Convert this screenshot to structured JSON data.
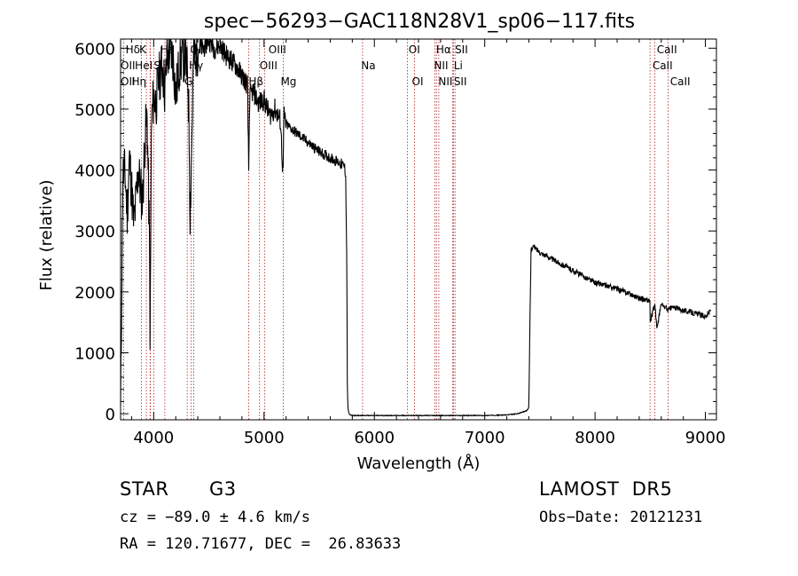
{
  "chart_data": {
    "type": "line",
    "title": "spec−56293−GAC118N28V1_sp06−117.fits",
    "xlabel": "Wavelength (Å)",
    "ylabel": "Flux (relative)",
    "xlim": [
      3700,
      9100
    ],
    "ylim": [
      -100,
      6150
    ],
    "x_ticks": [
      4000,
      5000,
      6000,
      7000,
      8000,
      9000
    ],
    "x_tick_labels": [
      "4000",
      "5000",
      "6000",
      "7000",
      "8000",
      "9000"
    ],
    "y_ticks": [
      0,
      1000,
      2000,
      3000,
      4000,
      5000,
      6000
    ],
    "y_tick_labels": [
      "0",
      "1000",
      "2000",
      "3000",
      "4000",
      "5000",
      "6000"
    ],
    "grid": false,
    "line_color": "#000000",
    "marker_color": "#b22222",
    "series": [
      {
        "x": [
          3700,
          3720,
          3740,
          3760,
          3780,
          3800,
          3820,
          3840,
          3860,
          3880,
          3900,
          3920,
          3940,
          3960,
          3968,
          3980,
          4000,
          4020,
          4040,
          4060,
          4080,
          4101,
          4120,
          4150,
          4180,
          4200,
          4230,
          4260,
          4290,
          4310,
          4320,
          4330,
          4340,
          4360,
          4400,
          4450,
          4500,
          4550,
          4600,
          4650,
          4700,
          4750,
          4800,
          4850,
          4861,
          4870,
          4900,
          4950,
          5000,
          5050,
          5100,
          5150,
          5172,
          5180,
          5200,
          5300,
          5400,
          5500,
          5600,
          5650,
          5700,
          5730,
          5740,
          5750,
          5755,
          5760,
          5770,
          5780,
          5800,
          5900,
          6000,
          6500,
          7000,
          7200,
          7300,
          7380,
          7400,
          7410,
          7420,
          7440,
          7500,
          7600,
          7700,
          7800,
          7900,
          8000,
          8100,
          8200,
          8300,
          8400,
          8498,
          8500,
          8542,
          8560,
          8600,
          8662,
          8700,
          8800,
          8900,
          9000,
          9050
        ],
        "y": [
          0,
          3900,
          3950,
          3300,
          4200,
          3700,
          3100,
          3500,
          4000,
          3700,
          3500,
          4500,
          4900,
          3000,
          1200,
          4800,
          5200,
          5100,
          5400,
          5600,
          5700,
          5300,
          5800,
          6000,
          5800,
          5200,
          5700,
          5900,
          5800,
          5500,
          4800,
          3300,
          4000,
          5800,
          6000,
          6000,
          6150,
          6000,
          6050,
          5900,
          5800,
          5700,
          5550,
          5400,
          4000,
          5200,
          5300,
          5100,
          5150,
          4900,
          5000,
          4800,
          3900,
          4900,
          4750,
          4600,
          4450,
          4300,
          4200,
          4150,
          4100,
          4050,
          3900,
          2500,
          500,
          100,
          0,
          -20,
          -30,
          -30,
          -30,
          -30,
          -30,
          -20,
          0,
          50,
          100,
          1500,
          2700,
          2750,
          2650,
          2550,
          2450,
          2350,
          2250,
          2150,
          2100,
          2050,
          1980,
          1900,
          1850,
          1500,
          1800,
          1400,
          1800,
          1700,
          1750,
          1700,
          1650,
          1600,
          1700
        ]
      }
    ],
    "lines": [
      {
        "name": "Hδ",
        "x": 4101
      },
      {
        "name": "K",
        "x": 3934
      },
      {
        "name": "H",
        "x": 3968
      },
      {
        "name": "Hε",
        "x": 3970
      },
      {
        "name": "OII",
        "x": 3727
      },
      {
        "name": "HeI",
        "x": 3889
      },
      {
        "name": "S",
        "x": 4000
      },
      {
        "name": "OIII",
        "x": 4363
      },
      {
        "name": "Hγ",
        "x": 4340
      },
      {
        "name": "G",
        "x": 4304
      },
      {
        "name": "OIII",
        "x": 4959
      },
      {
        "name": "OIII",
        "x": 5007
      },
      {
        "name": "Hβ",
        "x": 4861
      },
      {
        "name": "Mg",
        "x": 5175
      },
      {
        "name": "Na",
        "x": 5893
      },
      {
        "name": "OI",
        "x": 6300
      },
      {
        "name": "OI",
        "x": 6364
      },
      {
        "name": "Hα",
        "x": 6563
      },
      {
        "name": "NII",
        "x": 6548
      },
      {
        "name": "NII",
        "x": 6584
      },
      {
        "name": "SII",
        "x": 6717
      },
      {
        "name": "SII",
        "x": 6731
      },
      {
        "name": "Li",
        "x": 6708
      },
      {
        "name": "CaII",
        "x": 8498
      },
      {
        "name": "CaII",
        "x": 8542
      },
      {
        "name": "CaII",
        "x": 8662
      }
    ],
    "line_labels": [
      {
        "text": "Hδ",
        "x": 3745,
        "row": 0
      },
      {
        "text": "K",
        "x": 3870,
        "row": 0
      },
      {
        "text": "Hε",
        "x": 4060,
        "row": 0
      },
      {
        "text": "OIII",
        "x": 4330,
        "row": 0
      },
      {
        "text": "OIII",
        "x": 5040,
        "row": 0
      },
      {
        "text": "OI",
        "x": 6310,
        "row": 0
      },
      {
        "text": "Hα",
        "x": 6560,
        "row": 0
      },
      {
        "text": "SII",
        "x": 6730,
        "row": 0
      },
      {
        "text": "CaII",
        "x": 8560,
        "row": 0
      },
      {
        "text": "OII",
        "x": 3700,
        "row": 1
      },
      {
        "text": "HeI",
        "x": 3830,
        "row": 1
      },
      {
        "text": "S",
        "x": 4000,
        "row": 1
      },
      {
        "text": "Hγ",
        "x": 4320,
        "row": 1
      },
      {
        "text": "OIII",
        "x": 4960,
        "row": 1
      },
      {
        "text": "Na",
        "x": 5880,
        "row": 1
      },
      {
        "text": "NII",
        "x": 6540,
        "row": 1
      },
      {
        "text": "Li",
        "x": 6720,
        "row": 1
      },
      {
        "text": "CaII",
        "x": 8520,
        "row": 1
      },
      {
        "text": "OII",
        "x": 3700,
        "row": 2
      },
      {
        "text": "Hη",
        "x": 3800,
        "row": 2
      },
      {
        "text": "G",
        "x": 4280,
        "row": 2
      },
      {
        "text": "Hβ",
        "x": 4860,
        "row": 2
      },
      {
        "text": "Mg",
        "x": 5150,
        "row": 2
      },
      {
        "text": "OI",
        "x": 6340,
        "row": 2
      },
      {
        "text": "NII",
        "x": 6580,
        "row": 2
      },
      {
        "text": "SII",
        "x": 6720,
        "row": 2
      },
      {
        "text": "CaII",
        "x": 8680,
        "row": 2
      }
    ]
  },
  "footer": {
    "class_label": "STAR",
    "subclass": "G3",
    "survey": "LAMOST  DR5",
    "cz": "cz = −89.0 ± 4.6 km/s",
    "obs_date": "Obs−Date: 20121231",
    "coords": "RA = 120.71677, DEC =  26.83633"
  }
}
